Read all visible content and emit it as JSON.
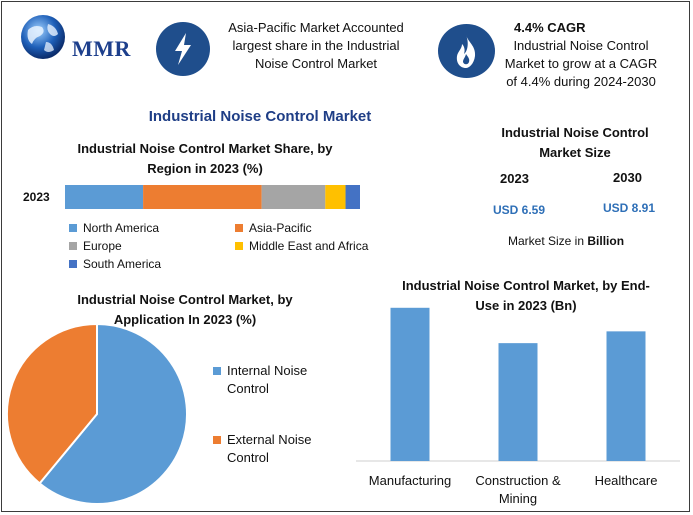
{
  "brand": {
    "name": "MMR"
  },
  "facts": [
    {
      "icon": "lightning-icon",
      "lines": [
        "Asia-Pacific Market Accounted",
        "largest share in the Industrial",
        "Noise Control Market"
      ]
    },
    {
      "icon": "flame-icon",
      "heading": "4.4% CAGR",
      "lines": [
        "Industrial Noise Control",
        "Market to grow at a CAGR",
        "of 4.4% during 2024-2030"
      ]
    }
  ],
  "main_title": "Industrial Noise Control Market",
  "market_size": {
    "title_lines": [
      "Industrial Noise Control",
      "Market Size"
    ],
    "years": [
      "2023",
      "2030"
    ],
    "values": [
      "USD 6.59",
      "USD 8.91"
    ],
    "note_prefix": "Market Size in ",
    "note_unit": "Billion"
  },
  "colors": {
    "north_america": "#5b9bd5",
    "asia_pacific": "#ed7d31",
    "europe": "#a5a5a5",
    "mea": "#ffc000",
    "south_america": "#4472c4",
    "bar": "#5b9bd5",
    "pie_internal": "#5b9bd5",
    "pie_external": "#ed7d31",
    "brand": "#1f4e8c"
  },
  "chart_data": [
    {
      "type": "bar",
      "orientation": "horizontal-stacked",
      "title_lines": [
        "Industrial Noise Control Market Share, by",
        "Region in 2023 (%)"
      ],
      "categories": [
        "2023"
      ],
      "series": [
        {
          "name": "North America",
          "values": [
            27
          ]
        },
        {
          "name": "Asia-Pacific",
          "values": [
            41
          ]
        },
        {
          "name": "Europe",
          "values": [
            22
          ]
        },
        {
          "name": "Middle East and Africa",
          "values": [
            7
          ]
        },
        {
          "name": "South America",
          "values": [
            5
          ]
        }
      ]
    },
    {
      "type": "pie",
      "title_lines": [
        "Industrial Noise Control Market, by",
        "Application In 2023 (%)"
      ],
      "labels": [
        "Internal Noise Control",
        "External Noise Control"
      ],
      "label_lines": [
        [
          "Internal Noise",
          "Control"
        ],
        [
          "External Noise",
          "Control"
        ]
      ],
      "values": [
        61,
        39
      ]
    },
    {
      "type": "bar",
      "title_lines": [
        "Industrial Noise Control Market, by End-",
        "Use in 2023 (Bn)"
      ],
      "categories": [
        "Manufacturing",
        "Construction & Mining",
        "Healthcare"
      ],
      "category_lines": [
        [
          "Manufacturing"
        ],
        [
          "Construction &",
          "Mining"
        ],
        [
          "Healthcare"
        ]
      ],
      "values": [
        2.6,
        2.0,
        2.2
      ],
      "ylim": [
        0,
        2.8
      ]
    }
  ]
}
